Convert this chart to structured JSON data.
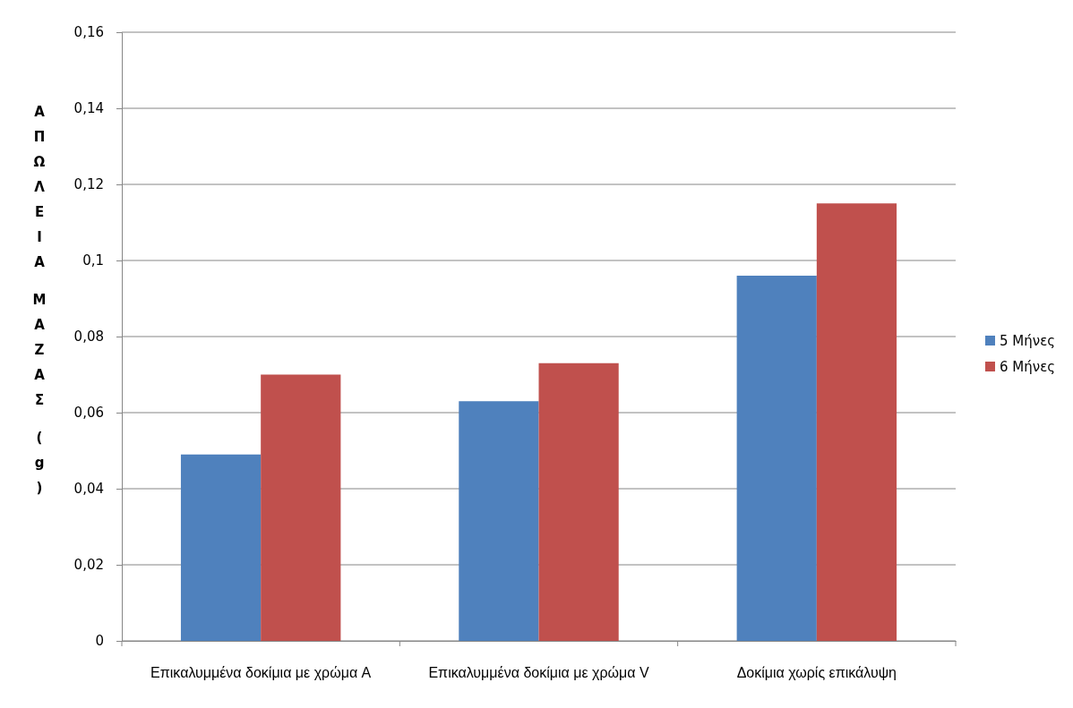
{
  "chart_data": {
    "type": "bar",
    "ylabel": "ΑΠΩΛΕΙΑ ΜΑΖΑΣ (g)",
    "categories": [
      "Επικαλυμμένα δοκίμια με χρώμα A",
      "Επικαλυμμένα δοκίμια με χρώμα V",
      "Δοκίμια χωρίς επικάλυψη"
    ],
    "series": [
      {
        "name": "5 Μήνες",
        "color": "#4f81bd",
        "values": [
          0.049,
          0.063,
          0.096
        ]
      },
      {
        "name": "6 Μήνες",
        "color": "#c0504d",
        "values": [
          0.07,
          0.073,
          0.115
        ]
      }
    ],
    "ylim": [
      0,
      0.16
    ],
    "yticks": [
      {
        "value": 0,
        "label": "0"
      },
      {
        "value": 0.02,
        "label": "0,02"
      },
      {
        "value": 0.04,
        "label": "0,04"
      },
      {
        "value": 0.06,
        "label": "0,06"
      },
      {
        "value": 0.08,
        "label": "0,08"
      },
      {
        "value": 0.1,
        "label": "0,1"
      },
      {
        "value": 0.12,
        "label": "0,12"
      },
      {
        "value": 0.14,
        "label": "0,14"
      },
      {
        "value": 0.16,
        "label": "0,16"
      }
    ],
    "grid": "y",
    "legend": "right"
  }
}
